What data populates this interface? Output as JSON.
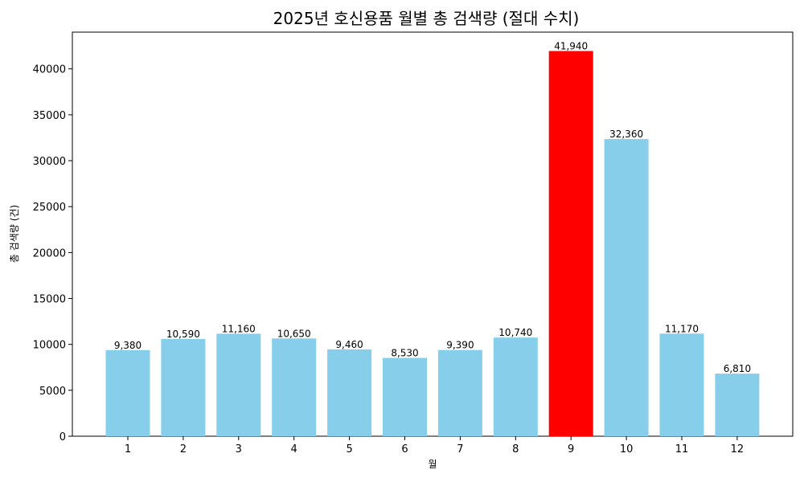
{
  "chart_data": {
    "type": "bar",
    "title": "2025년 호신용품 월별 총 검색량 (절대 수치)",
    "xlabel": "월",
    "ylabel": "총 검색량 (건)",
    "categories": [
      "1",
      "2",
      "3",
      "4",
      "5",
      "6",
      "7",
      "8",
      "9",
      "10",
      "11",
      "12"
    ],
    "values": [
      9380,
      10590,
      11160,
      10650,
      9460,
      8530,
      9390,
      10740,
      41940,
      32360,
      11170,
      6810
    ],
    "data_labels": [
      "9,380",
      "10,590",
      "11,160",
      "10,650",
      "9,460",
      "8,530",
      "9,390",
      "10,740",
      "41,940",
      "32,360",
      "11,170",
      "6,810"
    ],
    "ylim": [
      0,
      44000
    ],
    "yticks": [
      0,
      5000,
      10000,
      15000,
      20000,
      25000,
      30000,
      35000,
      40000
    ],
    "grid": false,
    "colors": {
      "default": "#87CEEB",
      "highlight": "#FF0000"
    },
    "highlight_index": 8
  }
}
